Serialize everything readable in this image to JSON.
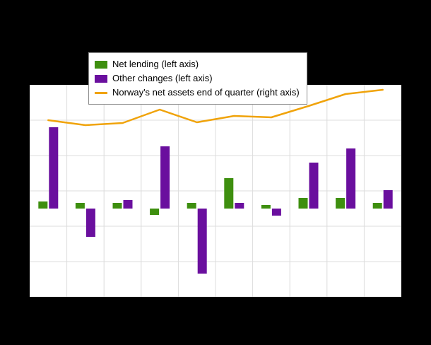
{
  "chart_data": {
    "type": "bar",
    "combo": "bar+line",
    "title": "",
    "xlabel": "",
    "ylabel": "",
    "n_groups": 10,
    "grid": true,
    "legend_position": "top",
    "left_ylim": [
      -250,
      350
    ],
    "right_ylim": [
      0,
      9000
    ],
    "series": [
      {
        "name": "Net lending (left axis)",
        "type": "bar",
        "axis": "left",
        "color": "#3e8f0f",
        "values": [
          20,
          16,
          16,
          -18,
          16,
          86,
          10,
          30,
          30,
          16
        ]
      },
      {
        "name": "Other changes (left axis)",
        "type": "bar",
        "axis": "left",
        "color": "#6a0f9e",
        "values": [
          230,
          -80,
          24,
          176,
          -184,
          16,
          -20,
          130,
          170,
          52
        ]
      },
      {
        "name": "Norway's net assets end of quarter (right axis)",
        "type": "line",
        "axis": "right",
        "color": "#f0a30a",
        "values": [
          7500,
          7290,
          7380,
          7950,
          7410,
          7680,
          7620,
          8100,
          8610,
          8790
        ]
      }
    ],
    "gridline_color": "#dcdcdc",
    "plot_background": "#ffffff",
    "page_background": "#000000"
  }
}
